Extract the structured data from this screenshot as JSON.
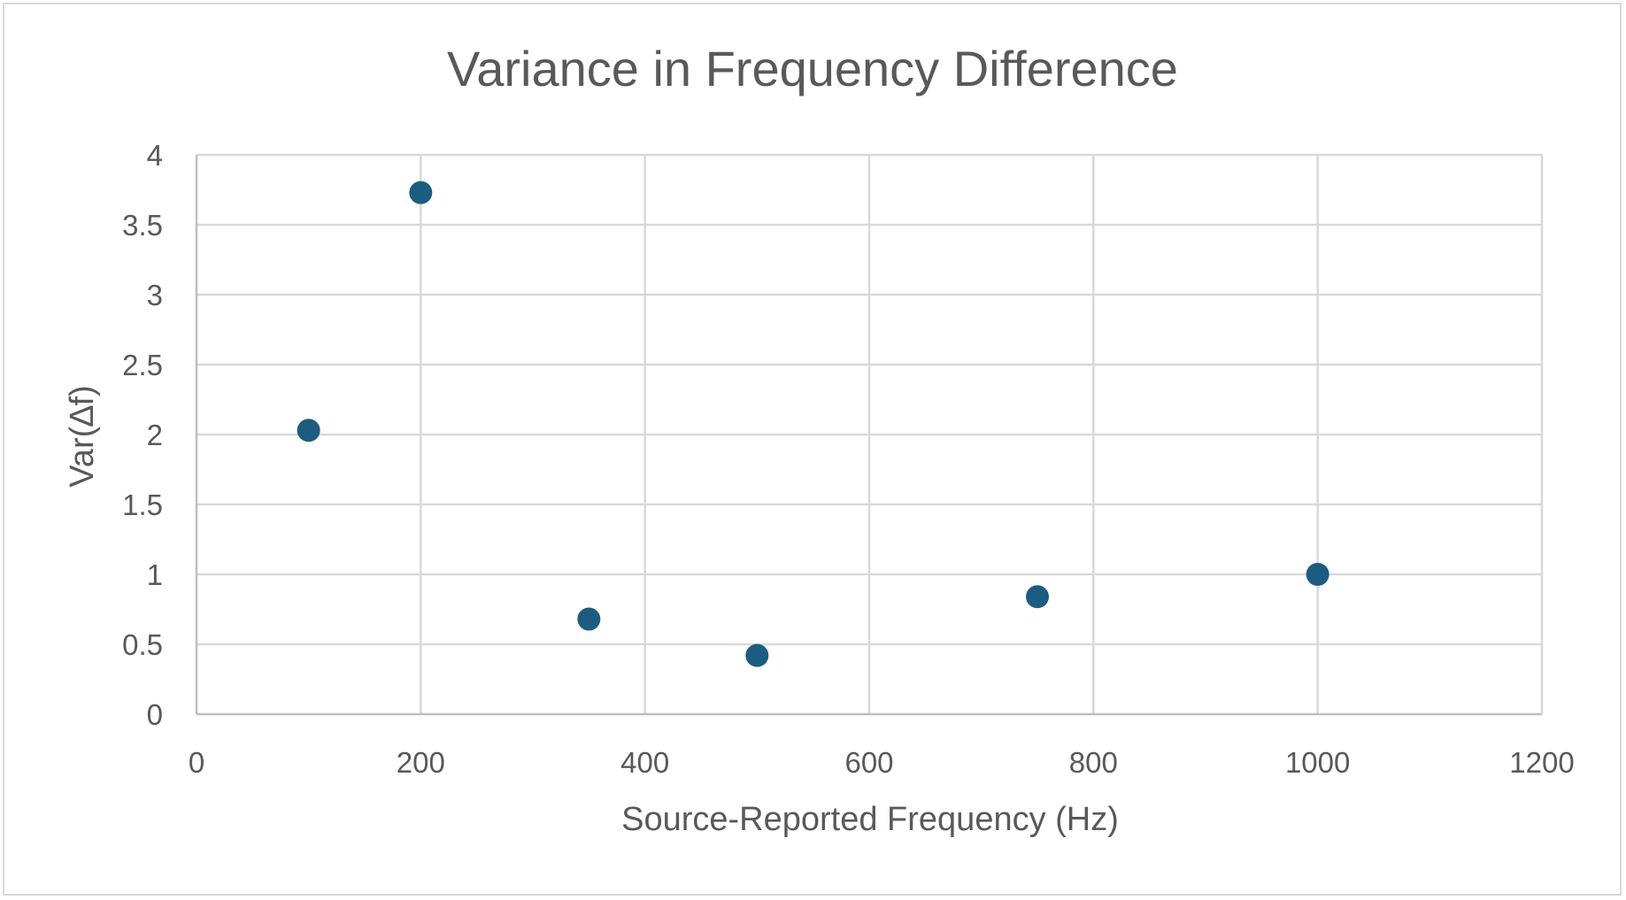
{
  "chart_data": {
    "type": "scatter",
    "title": "Variance in Frequency Difference",
    "xlabel": "Source-Reported Frequency (Hz)",
    "ylabel": "Var(∆f)",
    "xlim": [
      0,
      1200
    ],
    "ylim": [
      0,
      4
    ],
    "x_ticks": [
      "0",
      "200",
      "400",
      "600",
      "800",
      "1000",
      "1200"
    ],
    "y_ticks": [
      "0",
      "0.5",
      "1",
      "1.5",
      "2",
      "2.5",
      "3",
      "3.5",
      "4"
    ],
    "grid": true,
    "legend": "none",
    "marker_color": "#1a5d80",
    "series": [
      {
        "x": [
          100,
          200,
          350,
          500,
          750,
          1000
        ],
        "y": [
          2.03,
          3.73,
          0.68,
          0.42,
          0.84,
          1.0
        ]
      }
    ]
  }
}
